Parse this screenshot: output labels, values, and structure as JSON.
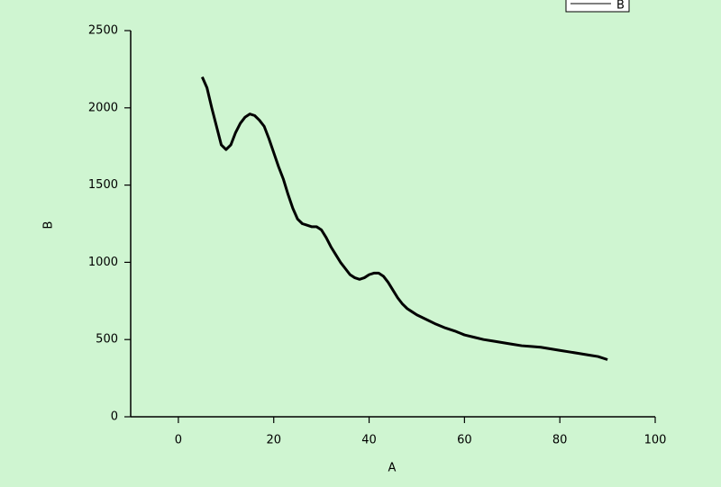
{
  "chart_data": {
    "type": "line",
    "xlabel": "A",
    "ylabel": "B",
    "x": [
      5,
      6,
      7,
      8,
      9,
      10,
      11,
      12,
      13,
      14,
      15,
      16,
      17,
      18,
      19,
      20,
      21,
      22,
      23,
      24,
      25,
      26,
      27,
      28,
      29,
      30,
      31,
      32,
      33,
      34,
      35,
      36,
      37,
      38,
      39,
      40,
      41,
      42,
      43,
      44,
      45,
      46,
      47,
      48,
      49,
      50,
      52,
      54,
      56,
      58,
      60,
      62,
      64,
      66,
      68,
      70,
      72,
      74,
      76,
      78,
      80,
      82,
      84,
      86,
      88,
      90
    ],
    "series": [
      {
        "name": "B",
        "color": "#000000",
        "values": [
          2200,
          2130,
          2000,
          1880,
          1760,
          1730,
          1760,
          1840,
          1900,
          1940,
          1960,
          1950,
          1920,
          1880,
          1800,
          1710,
          1620,
          1540,
          1440,
          1350,
          1280,
          1250,
          1240,
          1230,
          1230,
          1210,
          1160,
          1100,
          1050,
          1000,
          960,
          920,
          900,
          890,
          900,
          920,
          930,
          930,
          910,
          870,
          820,
          770,
          730,
          700,
          680,
          660,
          630,
          600,
          575,
          555,
          530,
          515,
          500,
          490,
          480,
          470,
          460,
          455,
          450,
          440,
          430,
          420,
          410,
          400,
          390,
          370
        ]
      }
    ],
    "xlim": [
      -10,
      100
    ],
    "xticks": [
      0,
      20,
      40,
      60,
      80,
      100
    ],
    "ylim": [
      0,
      2500
    ],
    "yticks": [
      0,
      500,
      1000,
      1500,
      2000,
      2500
    ],
    "legend": "upper right"
  }
}
